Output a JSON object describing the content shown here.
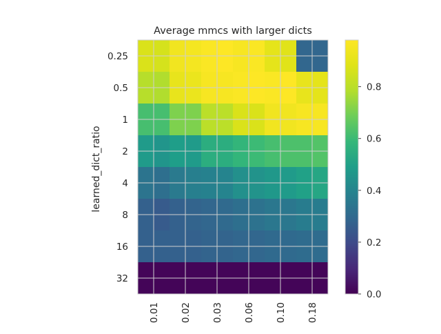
{
  "chart_data": {
    "type": "heatmap",
    "title": "Average mmcs with larger dicts",
    "xlabel": "",
    "ylabel": "learned_dict_ratio",
    "x_ticks": [
      "0.01",
      "0.02",
      "0.03",
      "0.06",
      "0.10",
      "0.18"
    ],
    "y_ticks": [
      "0.25",
      "0.5",
      "1",
      "2",
      "4",
      "8",
      "16",
      "32"
    ],
    "colormap": "viridis",
    "vmin": 0.0,
    "vmax": 0.98,
    "colorbar_ticks": [
      "0.0",
      "0.2",
      "0.4",
      "0.6",
      "0.8"
    ],
    "grid": true,
    "values": [
      [
        0.87,
        0.86,
        0.94,
        0.95,
        0.97,
        0.98,
        0.96,
        0.97,
        0.9,
        0.89,
        0.29,
        0.29
      ],
      [
        0.87,
        0.86,
        0.94,
        0.95,
        0.97,
        0.98,
        0.96,
        0.97,
        0.9,
        0.89,
        0.29,
        0.29
      ],
      [
        0.79,
        0.78,
        0.91,
        0.92,
        0.96,
        0.96,
        0.97,
        0.98,
        0.97,
        0.98,
        0.91,
        0.9
      ],
      [
        0.79,
        0.78,
        0.91,
        0.92,
        0.96,
        0.96,
        0.97,
        0.98,
        0.97,
        0.98,
        0.91,
        0.9
      ],
      [
        0.62,
        0.62,
        0.71,
        0.71,
        0.8,
        0.8,
        0.87,
        0.87,
        0.94,
        0.94,
        0.96,
        0.96
      ],
      [
        0.62,
        0.62,
        0.71,
        0.71,
        0.8,
        0.8,
        0.87,
        0.87,
        0.94,
        0.94,
        0.96,
        0.96
      ],
      [
        0.48,
        0.46,
        0.49,
        0.48,
        0.55,
        0.55,
        0.58,
        0.6,
        0.62,
        0.63,
        0.63,
        0.64
      ],
      [
        0.48,
        0.46,
        0.49,
        0.48,
        0.55,
        0.55,
        0.58,
        0.6,
        0.62,
        0.63,
        0.63,
        0.64
      ],
      [
        0.34,
        0.32,
        0.36,
        0.38,
        0.39,
        0.4,
        0.44,
        0.45,
        0.47,
        0.48,
        0.5,
        0.52
      ],
      [
        0.34,
        0.32,
        0.36,
        0.38,
        0.39,
        0.4,
        0.44,
        0.45,
        0.47,
        0.48,
        0.5,
        0.52
      ],
      [
        0.27,
        0.25,
        0.27,
        0.28,
        0.29,
        0.3,
        0.32,
        0.33,
        0.35,
        0.35,
        0.37,
        0.37
      ],
      [
        0.27,
        0.25,
        0.27,
        0.28,
        0.29,
        0.3,
        0.32,
        0.33,
        0.35,
        0.35,
        0.37,
        0.37
      ],
      [
        0.27,
        0.27,
        0.27,
        0.27,
        0.28,
        0.28,
        0.29,
        0.29,
        0.3,
        0.3,
        0.31,
        0.31
      ],
      [
        0.27,
        0.27,
        0.27,
        0.27,
        0.28,
        0.28,
        0.29,
        0.29,
        0.3,
        0.3,
        0.31,
        0.31
      ],
      [
        0.01,
        0.01,
        0.01,
        0.01,
        0.01,
        0.01,
        0.01,
        0.01,
        0.01,
        0.01,
        0.01,
        0.01
      ],
      [
        0.01,
        0.01,
        0.01,
        0.01,
        0.01,
        0.01,
        0.01,
        0.01,
        0.01,
        0.01,
        0.01,
        0.01
      ]
    ]
  }
}
